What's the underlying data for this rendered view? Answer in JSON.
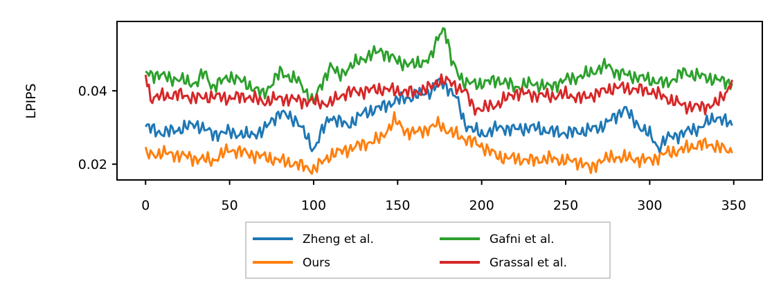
{
  "chart_data": {
    "type": "line",
    "title": "",
    "xlabel": "",
    "ylabel": "LPIPS",
    "xlim": [
      -17,
      367
    ],
    "ylim": [
      0.0157,
      0.0589
    ],
    "xticks": [
      0,
      50,
      100,
      150,
      200,
      250,
      300,
      350
    ],
    "yticks": [
      0.02,
      0.04
    ],
    "ytick_labels": [
      "0.02",
      "0.04"
    ],
    "grid": false,
    "legend": {
      "placement": "below",
      "columns": 2,
      "order": [
        "Zheng et al.",
        "Ours",
        "Gafni et al.",
        "Grassal et al."
      ]
    },
    "series": [
      {
        "name": "Zheng et al.",
        "color": "#1f77b4",
        "x": [
          0,
          10,
          20,
          30,
          40,
          50,
          60,
          70,
          75,
          80,
          90,
          100,
          105,
          110,
          120,
          130,
          140,
          150,
          160,
          170,
          175,
          180,
          185,
          190,
          200,
          210,
          220,
          230,
          240,
          250,
          260,
          270,
          280,
          285,
          290,
          300,
          305,
          310,
          320,
          330,
          340,
          349
        ],
        "y": [
          0.0302,
          0.0285,
          0.0295,
          0.031,
          0.0282,
          0.0288,
          0.0278,
          0.029,
          0.032,
          0.034,
          0.032,
          0.024,
          0.029,
          0.033,
          0.0305,
          0.034,
          0.0355,
          0.0375,
          0.0385,
          0.04,
          0.0425,
          0.041,
          0.038,
          0.031,
          0.028,
          0.03,
          0.0295,
          0.03,
          0.029,
          0.0285,
          0.029,
          0.03,
          0.033,
          0.0355,
          0.032,
          0.028,
          0.0245,
          0.027,
          0.0285,
          0.03,
          0.033,
          0.0305
        ]
      },
      {
        "name": "Ours",
        "color": "#ff7f0e",
        "x": [
          0,
          10,
          20,
          30,
          40,
          50,
          60,
          70,
          80,
          90,
          100,
          110,
          120,
          130,
          140,
          148,
          155,
          160,
          170,
          175,
          180,
          190,
          200,
          210,
          220,
          230,
          240,
          250,
          260,
          265,
          270,
          280,
          290,
          300,
          310,
          320,
          330,
          340,
          349
        ],
        "y": [
          0.0225,
          0.023,
          0.0225,
          0.0215,
          0.021,
          0.024,
          0.023,
          0.022,
          0.021,
          0.02,
          0.0185,
          0.0225,
          0.024,
          0.0255,
          0.027,
          0.032,
          0.029,
          0.0285,
          0.03,
          0.031,
          0.029,
          0.027,
          0.025,
          0.022,
          0.0215,
          0.021,
          0.0215,
          0.021,
          0.0205,
          0.0185,
          0.021,
          0.022,
          0.0215,
          0.021,
          0.023,
          0.024,
          0.0255,
          0.025,
          0.023
        ]
      },
      {
        "name": "Gafni et al.",
        "color": "#2ca02c",
        "x": [
          0,
          10,
          20,
          30,
          35,
          40,
          50,
          60,
          70,
          80,
          90,
          100,
          105,
          110,
          115,
          120,
          130,
          140,
          150,
          160,
          170,
          175,
          178,
          182,
          190,
          200,
          210,
          220,
          230,
          240,
          250,
          260,
          270,
          275,
          280,
          290,
          300,
          310,
          320,
          330,
          340,
          349
        ],
        "y": [
          0.045,
          0.044,
          0.043,
          0.042,
          0.045,
          0.041,
          0.044,
          0.042,
          0.039,
          0.045,
          0.043,
          0.037,
          0.042,
          0.047,
          0.044,
          0.046,
          0.049,
          0.051,
          0.048,
          0.047,
          0.049,
          0.056,
          0.057,
          0.048,
          0.042,
          0.042,
          0.043,
          0.041,
          0.042,
          0.041,
          0.043,
          0.044,
          0.046,
          0.047,
          0.045,
          0.044,
          0.043,
          0.042,
          0.045,
          0.044,
          0.043,
          0.042
        ]
      },
      {
        "name": "Grassal et al.",
        "color": "#d62728",
        "x": [
          0,
          3,
          10,
          20,
          30,
          40,
          50,
          60,
          70,
          80,
          90,
          100,
          110,
          115,
          120,
          130,
          140,
          150,
          160,
          170,
          175,
          180,
          190,
          195,
          200,
          210,
          220,
          230,
          240,
          250,
          260,
          270,
          280,
          290,
          300,
          310,
          320,
          330,
          340,
          346,
          349
        ],
        "y": [
          0.045,
          0.038,
          0.0385,
          0.039,
          0.038,
          0.0385,
          0.038,
          0.0385,
          0.037,
          0.038,
          0.0375,
          0.037,
          0.0365,
          0.0385,
          0.0395,
          0.04,
          0.0405,
          0.04,
          0.0395,
          0.041,
          0.043,
          0.0425,
          0.04,
          0.0355,
          0.035,
          0.0365,
          0.0395,
          0.039,
          0.0385,
          0.039,
          0.038,
          0.0395,
          0.041,
          0.0405,
          0.04,
          0.038,
          0.036,
          0.0355,
          0.0365,
          0.04,
          0.043
        ]
      }
    ]
  }
}
